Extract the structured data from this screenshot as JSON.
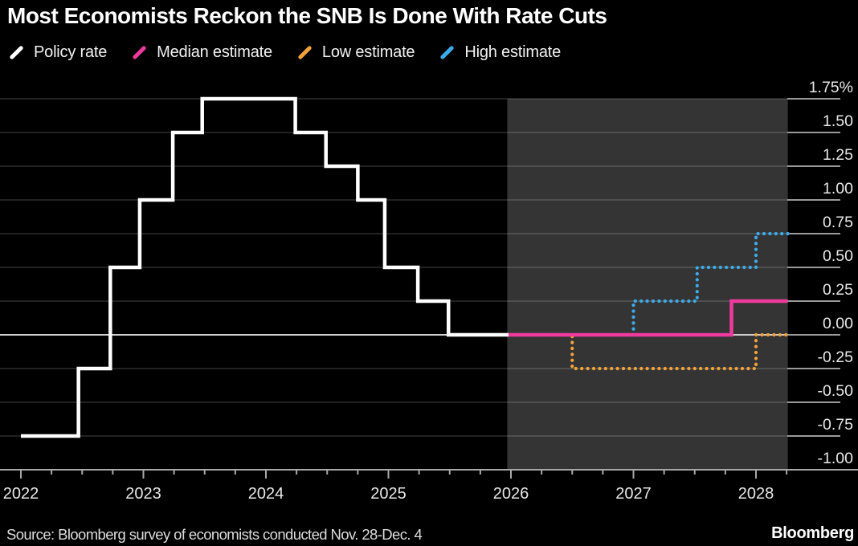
{
  "header": {
    "title": "Most Economists Reckon the SNB Is Done With Rate Cuts"
  },
  "legend": {
    "items": [
      {
        "label": "Policy rate",
        "color": "#ffffff"
      },
      {
        "label": "Median estimate",
        "color": "#ee3a9c",
        "icon": "slash-icon"
      },
      {
        "label": "Low estimate",
        "color": "#f2a23a",
        "icon": "slash-icon"
      },
      {
        "label": "High estimate",
        "color": "#3dabea",
        "icon": "slash-icon"
      }
    ]
  },
  "footer": {
    "source": "Source: Bloomberg survey of economists conducted Nov. 28-Dec. 4",
    "brand": "Bloomberg"
  },
  "chart_data": {
    "type": "line",
    "step": true,
    "unit": "%",
    "title": "Most Economists Reckon the SNB Is Done With Rate Cuts",
    "y_axis": {
      "labels": [
        "1.75%",
        "1.50",
        "1.25",
        "1.00",
        "0.75",
        "0.50",
        "0.25",
        "0.00",
        "-0.25",
        "-0.50",
        "-0.75",
        "-1.00"
      ],
      "values": [
        1.75,
        1.5,
        1.25,
        1.0,
        0.75,
        0.5,
        0.25,
        0.0,
        -0.25,
        -0.5,
        -0.75,
        -1.0
      ],
      "range": [
        -1.0,
        1.75
      ],
      "grid": true,
      "side": "right"
    },
    "x_axis": {
      "years": [
        2022,
        2023,
        2024,
        2025,
        2026,
        2027,
        2028
      ],
      "quarter_ticks": true,
      "range": [
        2022.0,
        2028.26
      ]
    },
    "forecast_region": {
      "start": 2025.97,
      "end": 2028.26,
      "fill": "#343434"
    },
    "series": [
      {
        "name": "Policy rate",
        "color": "#ffffff",
        "line_style": "solid",
        "points": [
          [
            2022.0,
            -0.75
          ],
          [
            2022.47,
            -0.25
          ],
          [
            2022.73,
            0.5
          ],
          [
            2022.97,
            1.0
          ],
          [
            2023.24,
            1.5
          ],
          [
            2023.48,
            1.75
          ],
          [
            2024.24,
            1.5
          ],
          [
            2024.49,
            1.25
          ],
          [
            2024.75,
            1.0
          ],
          [
            2024.97,
            0.5
          ],
          [
            2025.24,
            0.25
          ],
          [
            2025.49,
            0.0
          ]
        ],
        "end_x": 2025.98
      },
      {
        "name": "Median estimate",
        "color": "#ee3a9c",
        "line_style": "solid",
        "points": [
          [
            2025.98,
            0.0
          ],
          [
            2027.8,
            0.25
          ]
        ],
        "end_x": 2028.26
      },
      {
        "name": "Low estimate",
        "color": "#f2a23a",
        "line_style": "dotted",
        "points": [
          [
            2025.98,
            0.0
          ],
          [
            2026.5,
            -0.25
          ],
          [
            2028.0,
            0.0
          ]
        ],
        "end_x": 2028.26
      },
      {
        "name": "High estimate",
        "color": "#3dabea",
        "line_style": "dotted",
        "points": [
          [
            2025.98,
            0.0
          ],
          [
            2027.0,
            0.25
          ],
          [
            2027.52,
            0.5
          ],
          [
            2028.0,
            0.75
          ]
        ],
        "end_x": 2028.26
      }
    ]
  }
}
